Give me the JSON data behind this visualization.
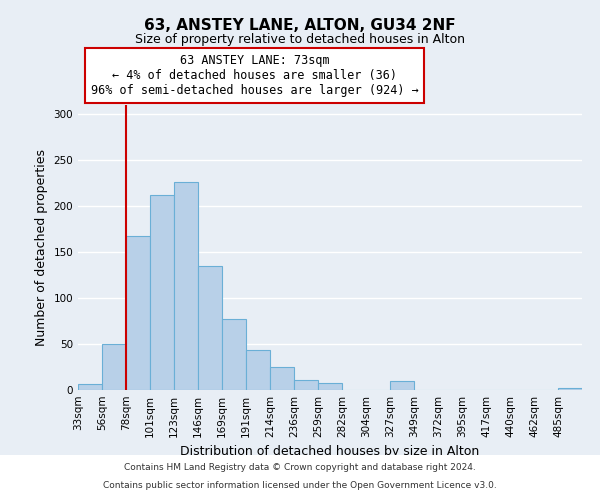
{
  "title": "63, ANSTEY LANE, ALTON, GU34 2NF",
  "subtitle": "Size of property relative to detached houses in Alton",
  "xlabel": "Distribution of detached houses by size in Alton",
  "ylabel": "Number of detached properties",
  "bin_labels": [
    "33sqm",
    "56sqm",
    "78sqm",
    "101sqm",
    "123sqm",
    "146sqm",
    "169sqm",
    "191sqm",
    "214sqm",
    "236sqm",
    "259sqm",
    "282sqm",
    "304sqm",
    "327sqm",
    "349sqm",
    "372sqm",
    "395sqm",
    "417sqm",
    "440sqm",
    "462sqm",
    "485sqm"
  ],
  "bar_values": [
    7,
    50,
    167,
    212,
    226,
    135,
    77,
    43,
    25,
    11,
    8,
    0,
    0,
    10,
    0,
    0,
    0,
    0,
    0,
    0,
    2
  ],
  "bar_color": "#b8d0e8",
  "bar_edge_color": "#6aafd6",
  "vline_x_index": 2,
  "vline_color": "#cc0000",
  "ylim": [
    0,
    310
  ],
  "yticks": [
    0,
    50,
    100,
    150,
    200,
    250,
    300
  ],
  "annotation_title": "63 ANSTEY LANE: 73sqm",
  "annotation_line1": "← 4% of detached houses are smaller (36)",
  "annotation_line2": "96% of semi-detached houses are larger (924) →",
  "annotation_box_facecolor": "#ffffff",
  "annotation_box_edgecolor": "#cc0000",
  "footer1": "Contains HM Land Registry data © Crown copyright and database right 2024.",
  "footer2": "Contains public sector information licensed under the Open Government Licence v3.0.",
  "fig_bg_color": "#e8eef5",
  "plot_bg_color": "#e8eef5",
  "footer_bg_color": "#ffffff",
  "grid_color": "#ffffff",
  "title_fontsize": 11,
  "subtitle_fontsize": 9,
  "tick_fontsize": 7.5,
  "ylabel_fontsize": 9,
  "xlabel_fontsize": 9,
  "annotation_fontsize": 8.5
}
